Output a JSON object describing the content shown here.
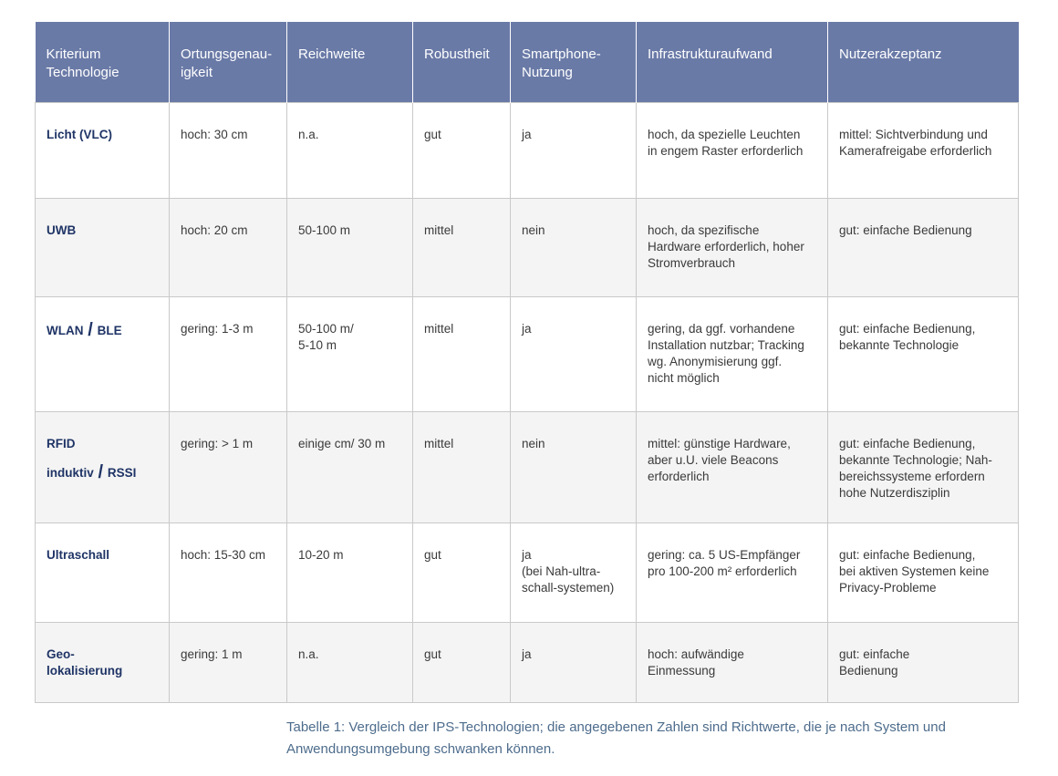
{
  "header": [
    "Kriterium\nTechnologie",
    "Ortungsgenau-\nigkeit",
    "Reichweite",
    "Robustheit",
    "Smartphone-\nNutzung",
    "Infrastrukturaufwand",
    "Nutzerakzeptanz"
  ],
  "rows": [
    {
      "tech": "Licht (VLC)",
      "genauigkeit": "hoch: 30 cm",
      "reichweite": "n.a.",
      "robustheit": "gut",
      "smartphone": "ja",
      "infrastruktur": "hoch, da spezielle Leuchten\nin engem Raster erforderlich",
      "akzeptanz": "mittel: Sichtverbindung und\nKamerafreigabe erforderlich"
    },
    {
      "tech": "UWB",
      "genauigkeit": "hoch: 20 cm",
      "reichweite": "50-100 m",
      "robustheit": "mittel",
      "smartphone": "nein",
      "infrastruktur": "hoch, da spezifische\nHardware erforderlich, hoher\nStromverbrauch",
      "akzeptanz": "gut: einfache Bedienung"
    },
    {
      "tech_a": "WLAN",
      "tech_sep": "/",
      "tech_b": "BLE",
      "genauigkeit": "gering: 1-3 m",
      "reichweite": "50-100 m/\n5-10 m",
      "robustheit": "mittel",
      "smartphone": "ja",
      "infrastruktur": "gering, da ggf. vorhandene\nInstallation nutzbar; Tracking\nwg. Anonymisierung ggf.\nnicht möglich",
      "akzeptanz": "gut: einfache Bedienung,\nbekannte Technologie"
    },
    {
      "tech": "RFID",
      "tech_sub_a": "induktiv",
      "tech_sep": "/",
      "tech_sub_b": "RSSI",
      "genauigkeit": "gering: > 1 m",
      "reichweite": "einige cm/ 30 m",
      "robustheit": "mittel",
      "smartphone": "nein",
      "infrastruktur": "mittel: günstige Hardware,\naber u.U. viele Beacons\nerforderlich",
      "akzeptanz": "gut: einfache Bedienung,\nbekannte Technologie; Nah-\nbereichssysteme erfordern\nhohe Nutzerdisziplin"
    },
    {
      "tech": "Ultraschall",
      "genauigkeit": "hoch: 15-30 cm",
      "reichweite": "10-20 m",
      "robustheit": "gut",
      "smartphone": "ja\n(bei Nah-ultra-\nschall-systemen)",
      "infrastruktur": "gering: ca. 5 US-Empfänger\npro 100-200 m² erforderlich",
      "akzeptanz": "gut: einfache Bedienung,\nbei aktiven Systemen keine\nPrivacy-Probleme"
    },
    {
      "tech": "Geo-\nlokalisierung",
      "genauigkeit": "gering: 1 m",
      "reichweite": "n.a.",
      "robustheit": "gut",
      "smartphone": "ja",
      "infrastruktur": "hoch: aufwändige\nEinmessung",
      "akzeptanz": "gut: einfache\nBedienung"
    }
  ],
  "caption": "Tabelle 1: Vergleich der IPS-Technologien; die angegebenen Zahlen sind Richtwerte, die je nach System und Anwendungsumgebung schwanken können."
}
